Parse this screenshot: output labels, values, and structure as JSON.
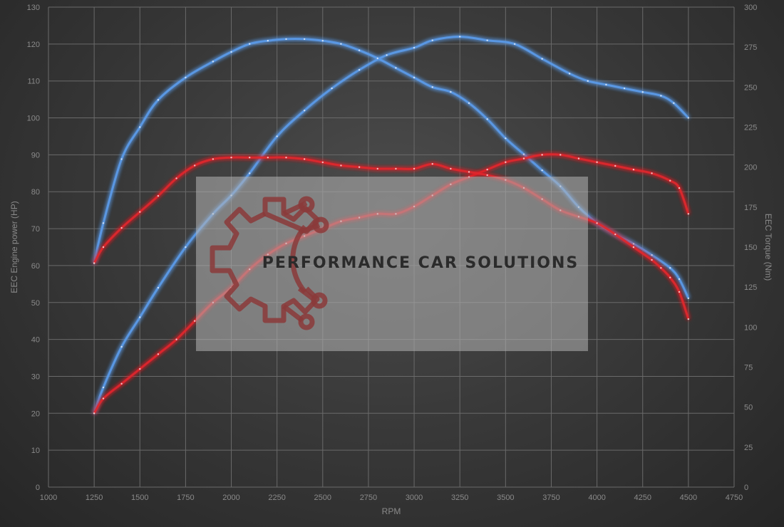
{
  "chart_data": {
    "type": "line",
    "xlabel": "RPM",
    "ylabel": "EEC Engine power (HP)",
    "y2label": "EEC Torque (Nm)",
    "xlim": [
      1000,
      4750
    ],
    "ylim": [
      0,
      130
    ],
    "y2lim": [
      0,
      300
    ],
    "xticks": [
      1000,
      1250,
      1500,
      1750,
      2000,
      2250,
      2500,
      2750,
      3000,
      3250,
      3500,
      3750,
      4000,
      4250,
      4500,
      4750
    ],
    "yticks": [
      0,
      10,
      20,
      30,
      40,
      50,
      60,
      70,
      80,
      90,
      100,
      110,
      120,
      130
    ],
    "y2ticks": [
      0,
      25,
      50,
      75,
      100,
      125,
      150,
      175,
      200,
      225,
      250,
      275,
      300
    ],
    "grid": true,
    "colors": {
      "stage1": "#5b9bea",
      "stock": "#e0262a"
    },
    "series": [
      {
        "key": "stage1-power",
        "color_key": "stage1",
        "axis": "left",
        "x": [
          1250,
          1300,
          1400,
          1500,
          1600,
          1750,
          1900,
          2000,
          2100,
          2250,
          2400,
          2550,
          2700,
          2850,
          3000,
          3100,
          3250,
          3400,
          3550,
          3700,
          3850,
          3950,
          4050,
          4150,
          4250,
          4350,
          4420,
          4500
        ],
        "y": [
          20,
          27,
          38,
          46,
          54,
          65,
          74,
          79,
          85,
          95,
          102,
          108,
          113,
          117,
          119,
          121,
          122,
          121,
          120,
          116,
          112,
          110,
          109,
          108,
          107,
          106,
          104,
          100
        ]
      },
      {
        "key": "stage1-torque",
        "color_key": "stage1",
        "axis": "right",
        "x": [
          1250,
          1300,
          1400,
          1500,
          1600,
          1750,
          1900,
          2000,
          2100,
          2200,
          2300,
          2400,
          2500,
          2600,
          2700,
          2800,
          2900,
          3000,
          3100,
          3200,
          3300,
          3400,
          3500,
          3600,
          3700,
          3800,
          3900,
          4000,
          4100,
          4200,
          4300,
          4400,
          4450,
          4500
        ],
        "y": [
          140,
          165,
          205,
          225,
          242,
          256,
          266,
          272,
          277,
          279,
          280,
          280,
          279,
          277,
          273,
          268,
          262,
          256,
          250,
          247,
          240,
          230,
          218,
          208,
          198,
          188,
          175,
          165,
          158,
          152,
          145,
          137,
          130,
          118
        ]
      },
      {
        "key": "stock-power",
        "color_key": "stock",
        "axis": "left",
        "x": [
          1250,
          1300,
          1400,
          1500,
          1600,
          1700,
          1800,
          1900,
          2000,
          2100,
          2200,
          2300,
          2400,
          2500,
          2600,
          2700,
          2800,
          2900,
          3000,
          3100,
          3200,
          3300,
          3400,
          3500,
          3600,
          3700,
          3800,
          3900,
          4000,
          4100,
          4200,
          4300,
          4400,
          4450,
          4500
        ],
        "y": [
          20,
          24,
          28,
          32,
          36,
          40,
          45,
          50,
          54,
          59,
          63,
          66,
          68,
          70,
          72,
          73,
          74,
          74,
          76,
          79,
          82,
          84,
          86,
          88,
          89,
          90,
          90,
          89,
          88,
          87,
          86,
          85,
          83,
          81,
          74
        ]
      },
      {
        "key": "stock-torque",
        "color_key": "stock",
        "axis": "right",
        "x": [
          1250,
          1300,
          1400,
          1500,
          1600,
          1700,
          1800,
          1900,
          2000,
          2100,
          2200,
          2300,
          2400,
          2500,
          2600,
          2700,
          2800,
          2900,
          3000,
          3100,
          3200,
          3300,
          3400,
          3500,
          3600,
          3700,
          3800,
          3900,
          4000,
          4100,
          4200,
          4300,
          4350,
          4400,
          4450,
          4500
        ],
        "y": [
          140,
          150,
          162,
          172,
          182,
          193,
          201,
          205,
          206,
          206,
          206,
          206,
          205,
          203,
          201,
          200,
          199,
          199,
          199,
          202,
          199,
          197,
          195,
          192,
          187,
          180,
          173,
          169,
          165,
          158,
          150,
          142,
          137,
          131,
          122,
          105
        ]
      }
    ]
  },
  "watermark": {
    "brand_text": "PERFORMANCE CAR SOLUTIONS"
  }
}
